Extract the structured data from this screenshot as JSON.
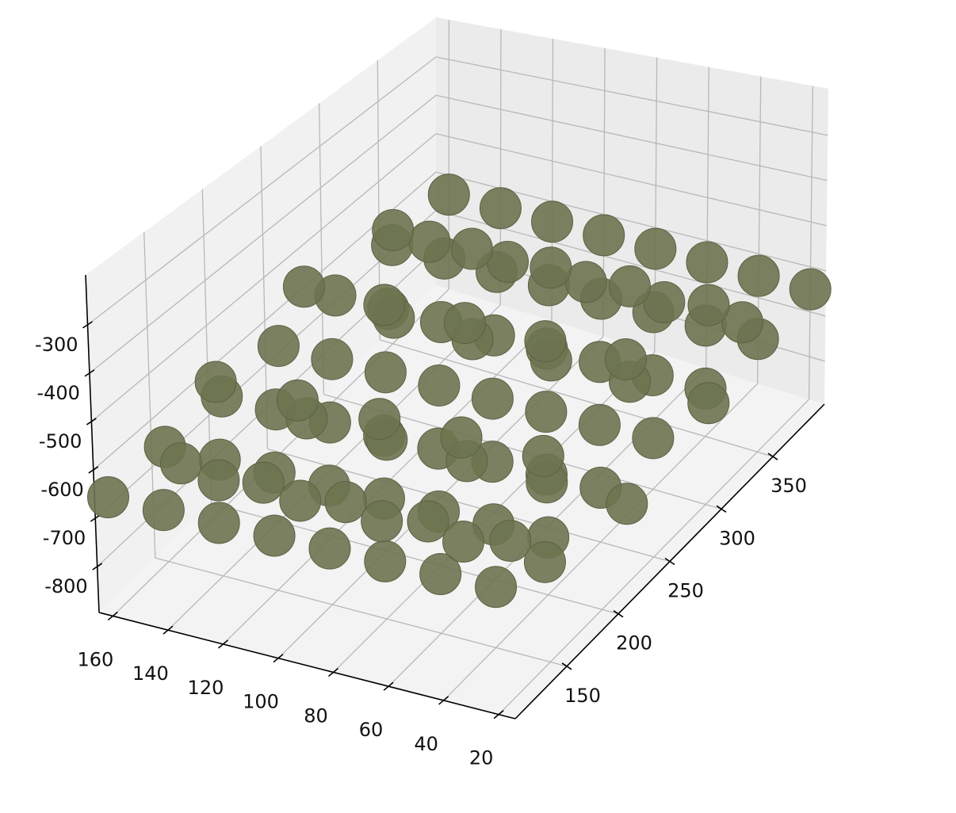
{
  "chart_data": {
    "type": "scatter3d",
    "xlim": [
      165,
      14
    ],
    "ylim": [
      100,
      400
    ],
    "zlim": [
      -895,
      -197
    ],
    "xticks": [
      160,
      140,
      120,
      100,
      80,
      60,
      40,
      20
    ],
    "yticks": [
      150,
      200,
      250,
      300,
      350
    ],
    "zticks": [
      -300,
      -400,
      -500,
      -600,
      -700,
      -800
    ],
    "grid": true,
    "series": [
      {
        "color": "#6d7350",
        "x": [
          160,
          160,
          160,
          160,
          160,
          160,
          160,
          140,
          140,
          140,
          140,
          140,
          140,
          140,
          120,
          120,
          120,
          120,
          120,
          120,
          120,
          100,
          100,
          100,
          100,
          100,
          100,
          100,
          80,
          80,
          80,
          80,
          80,
          80,
          80,
          60,
          60,
          60,
          60,
          60,
          60,
          60,
          40,
          40,
          40,
          40,
          40,
          40,
          40,
          20,
          20,
          20,
          20,
          20,
          20,
          20,
          150,
          150,
          150,
          150,
          150,
          150,
          150,
          150,
          120,
          120,
          120,
          120,
          120,
          120,
          120,
          120,
          90,
          90,
          90,
          90,
          90,
          90,
          90,
          90,
          60,
          60,
          60,
          60,
          60,
          60,
          60,
          60,
          30,
          30,
          30,
          30,
          30,
          30,
          30,
          30
        ],
        "y": [
          100,
          150,
          200,
          250,
          300,
          350,
          400,
          100,
          150,
          200,
          250,
          300,
          350,
          400,
          100,
          150,
          200,
          250,
          300,
          350,
          400,
          100,
          150,
          200,
          250,
          300,
          350,
          400,
          100,
          150,
          200,
          250,
          300,
          350,
          400,
          100,
          150,
          200,
          250,
          300,
          350,
          400,
          100,
          150,
          200,
          250,
          300,
          350,
          400,
          100,
          150,
          200,
          250,
          300,
          350,
          400,
          360,
          328,
          250,
          172,
          140,
          172,
          250,
          328,
          360,
          328,
          250,
          172,
          140,
          172,
          250,
          328,
          360,
          328,
          250,
          172,
          140,
          172,
          250,
          328,
          360,
          328,
          250,
          172,
          140,
          172,
          250,
          328,
          360,
          328,
          250,
          172,
          140,
          172,
          250,
          328
        ],
        "z": [
          -650,
          -650,
          -650,
          -650,
          -650,
          -650,
          -650,
          -650,
          -650,
          -650,
          -650,
          -650,
          -650,
          -650,
          -650,
          -650,
          -650,
          -650,
          -650,
          -650,
          -650,
          -650,
          -650,
          -650,
          -650,
          -650,
          -650,
          -650,
          -650,
          -650,
          -650,
          -650,
          -650,
          -650,
          -650,
          -650,
          -650,
          -650,
          -650,
          -650,
          -650,
          -650,
          -650,
          -650,
          -650,
          -650,
          -650,
          -650,
          -650,
          -650,
          -650,
          -650,
          -650,
          -650,
          -650,
          -650,
          -650,
          -544,
          -500,
          -544,
          -650,
          -756,
          -800,
          -756,
          -650,
          -544,
          -500,
          -544,
          -650,
          -756,
          -800,
          -756,
          -650,
          -544,
          -500,
          -544,
          -650,
          -756,
          -800,
          -756,
          -650,
          -544,
          -500,
          -544,
          -650,
          -756,
          -800,
          -756,
          -650,
          -544,
          -500,
          -544,
          -650,
          -756,
          -800,
          -756
        ]
      }
    ]
  }
}
